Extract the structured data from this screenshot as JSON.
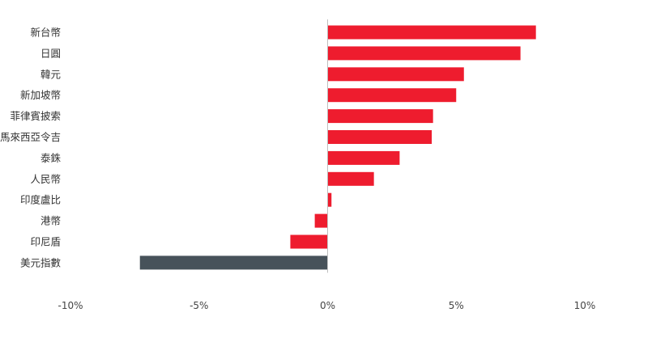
{
  "chart_data": {
    "type": "bar",
    "orientation": "horizontal",
    "title": "",
    "xlabel": "",
    "ylabel": "",
    "categories": [
      "新台幣",
      "日圓",
      "韓元",
      "新加坡幣",
      "菲律賓披索",
      "馬來西亞令吉",
      "泰銖",
      "人民幣",
      "印度盧比",
      "港幣",
      "印尼盾",
      "美元指數"
    ],
    "values": [
      8.1,
      7.5,
      5.3,
      5.0,
      4.1,
      4.05,
      2.8,
      1.8,
      0.15,
      -0.5,
      -1.45,
      -7.3
    ],
    "xlim": [
      -10,
      14
    ],
    "xticks": [
      -10,
      -5,
      0,
      5,
      10
    ],
    "xtick_labels": [
      "-10%",
      "-5%",
      "0%",
      "5%",
      "10%"
    ],
    "grid": false,
    "legend": "none",
    "colors": {
      "default_bar": "#EE1C2E",
      "highlight_bar": "#47525A",
      "zero_line": "#BFBFBF"
    },
    "highlight_category": "美元指數"
  }
}
